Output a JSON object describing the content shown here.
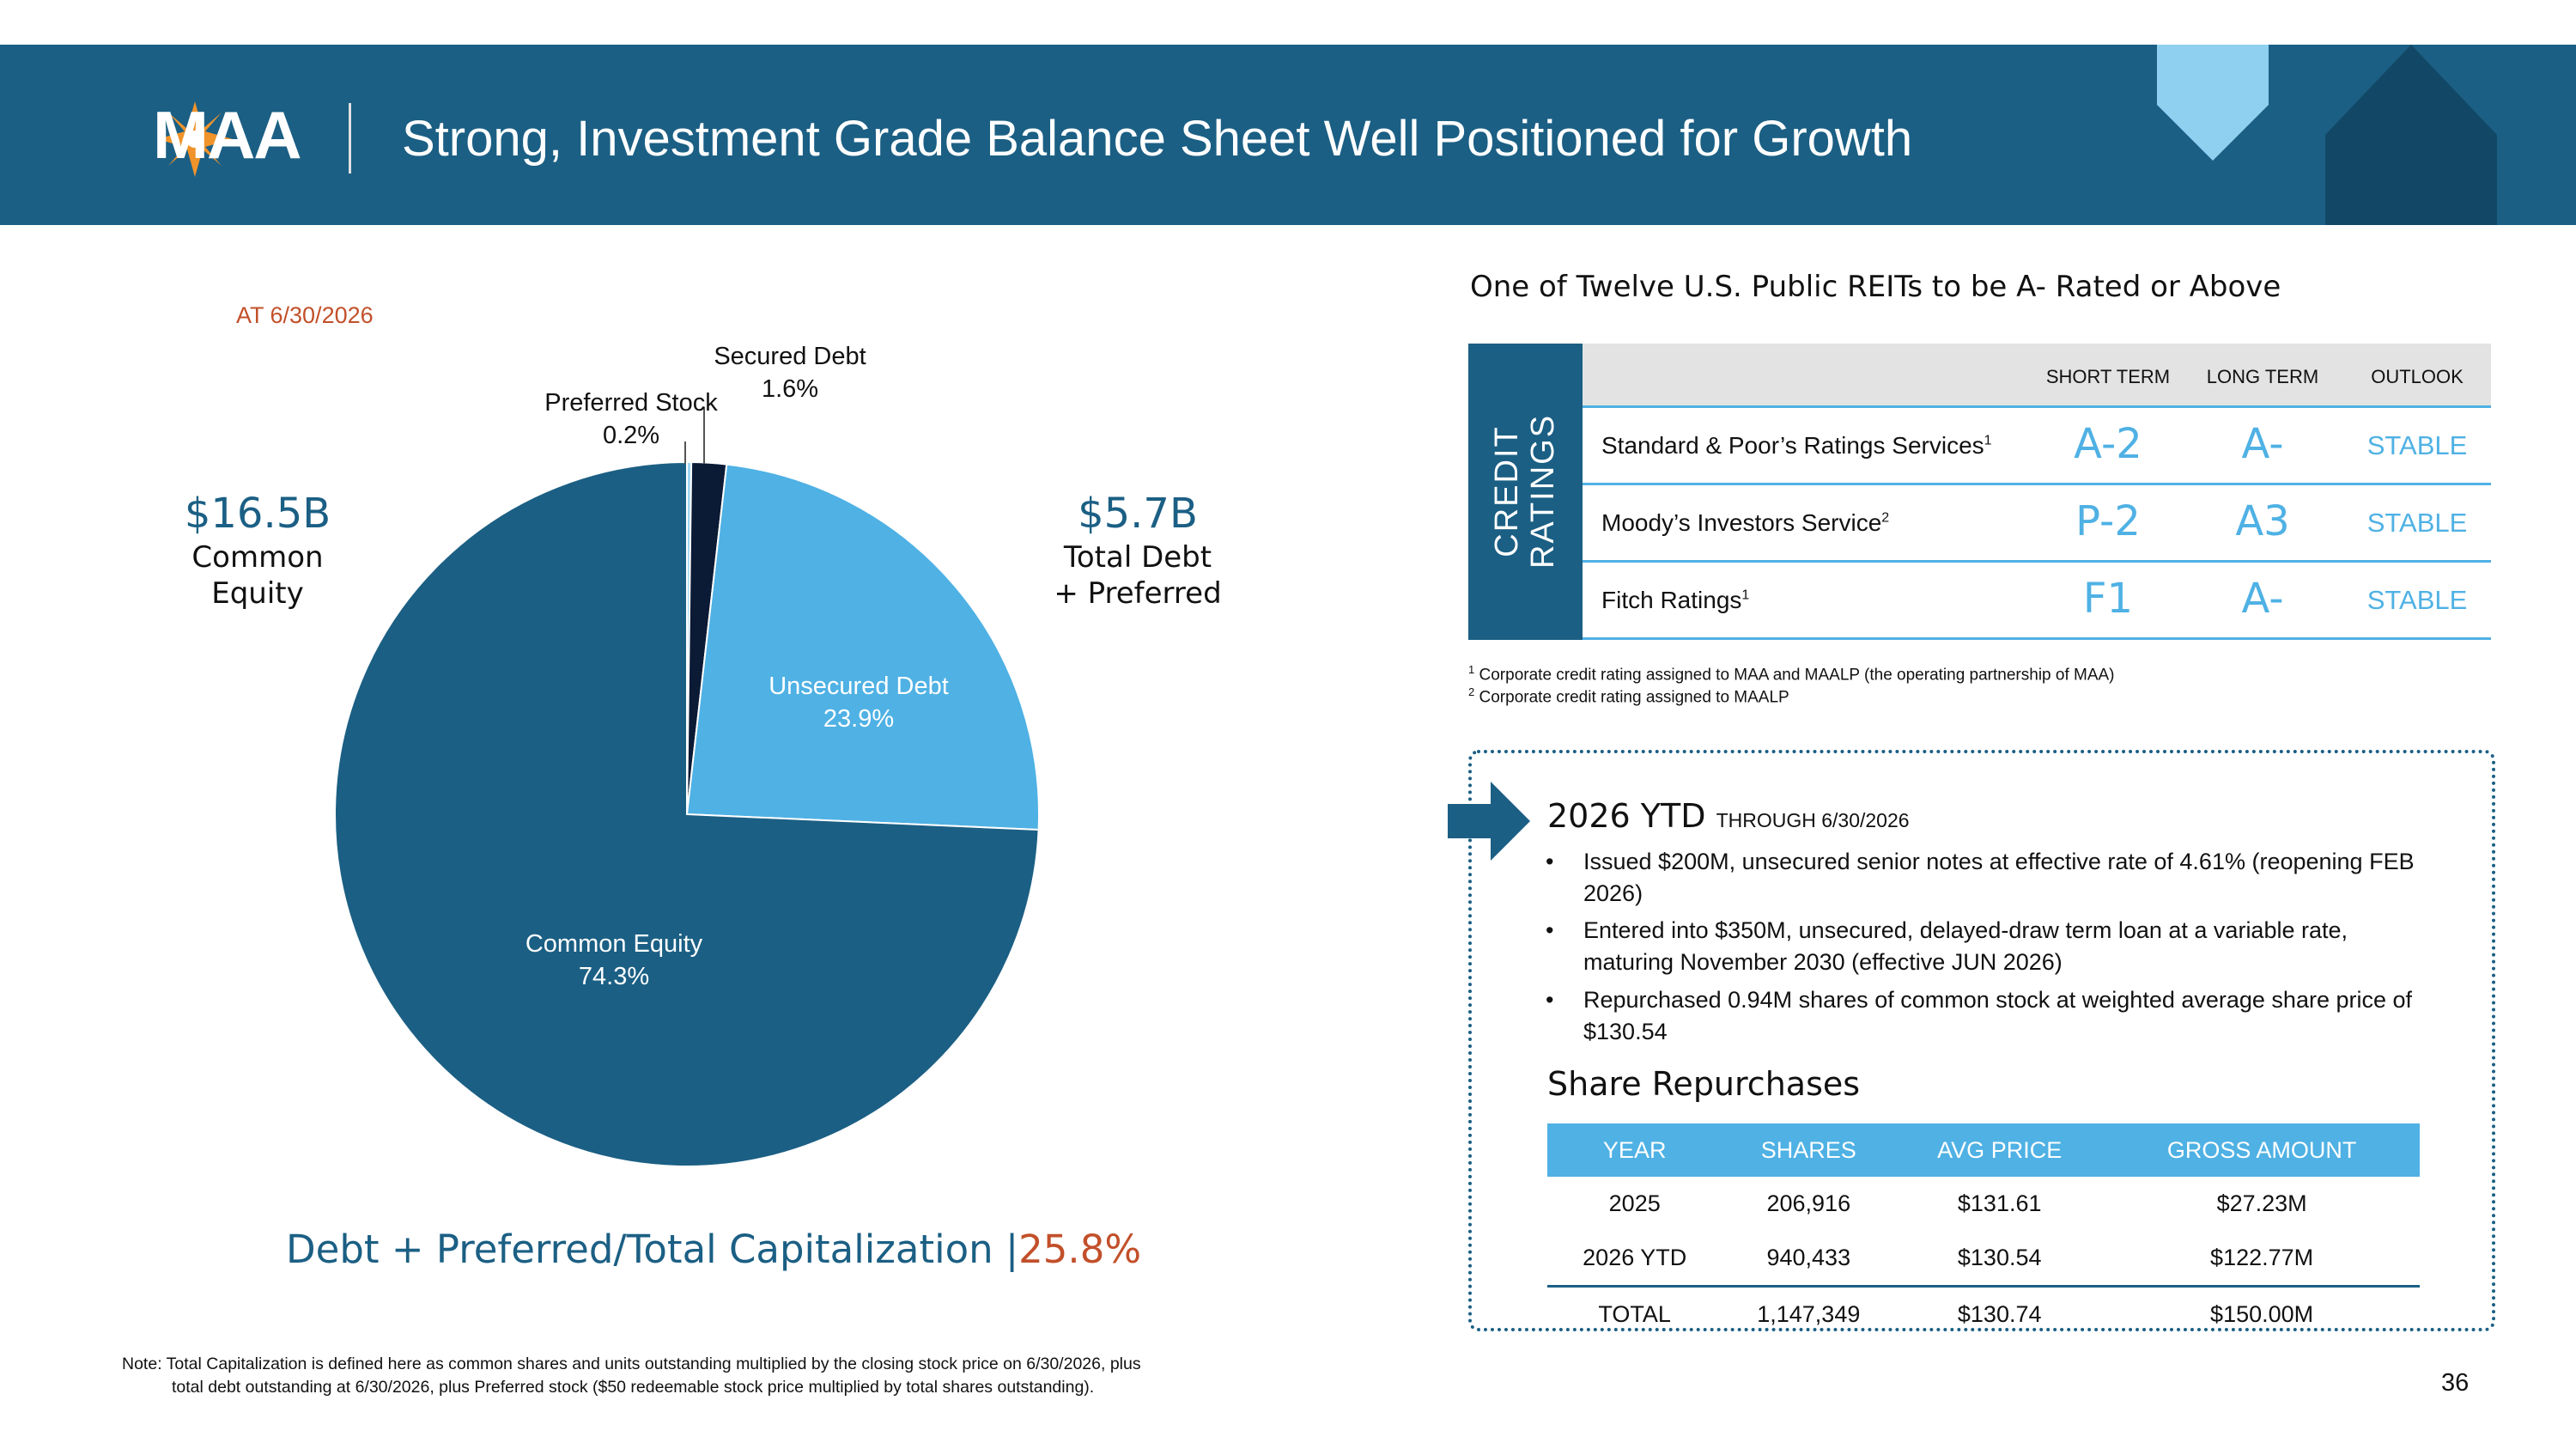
{
  "header": {
    "logo_text": "MAA",
    "title": "Strong, Investment Grade Balance Sheet Well Positioned for Growth"
  },
  "left": {
    "as_of": "AT 6/30/2026",
    "equity_callout": {
      "value": "$16.5B",
      "label1": "Common",
      "label2": "Equity"
    },
    "debt_callout": {
      "value": "$5.7B",
      "label1": "Total Debt",
      "label2": "+ Preferred"
    },
    "ratio_label": "Debt + Preferred/Total Capitalization |",
    "ratio_value": "25.8%",
    "note_line1": "Note: Total Capitalization is defined here as common shares and units outstanding multiplied by the closing stock price on 6/30/2026, plus",
    "note_line2": "total debt outstanding at 6/30/2026, plus Preferred stock ($50 redeemable stock price multiplied by total shares outstanding)."
  },
  "chart_data": {
    "type": "pie",
    "slices": [
      {
        "label": "Preferred Stock",
        "value": 0.2,
        "value_label": "0.2%",
        "color": "#9fd6f2"
      },
      {
        "label": "Secured Debt",
        "value": 1.6,
        "value_label": "1.6%",
        "color": "#0b1a35"
      },
      {
        "label": "Unsecured Debt",
        "value": 23.9,
        "value_label": "23.9%",
        "color": "#4fb1e4"
      },
      {
        "label": "Common Equity",
        "value": 74.3,
        "value_label": "74.3%",
        "color": "#1b5f84"
      }
    ]
  },
  "ratings": {
    "heading": "One of Twelve U.S. Public REITs to be A- Rated or Above",
    "side_line1": "CREDIT",
    "side_line2": "RATINGS",
    "columns": [
      "SHORT TERM",
      "LONG TERM",
      "OUTLOOK"
    ],
    "rows": [
      {
        "agency": "Standard & Poor’s Ratings Services",
        "sup": "1",
        "short": "A-2",
        "long": "A-",
        "outlook": "STABLE"
      },
      {
        "agency": "Moody’s Investors Service",
        "sup": "2",
        "short": "P-2",
        "long": "A3",
        "outlook": "STABLE"
      },
      {
        "agency": "Fitch Ratings",
        "sup": "1",
        "short": "F1",
        "long": "A-",
        "outlook": "STABLE"
      }
    ],
    "footnote1_sup": "1",
    "footnote1": "Corporate credit rating assigned to MAA and MAALP (the operating partnership of MAA)",
    "footnote2_sup": "2",
    "footnote2": "Corporate credit rating assigned to MAALP"
  },
  "ytd": {
    "title": "2026 YTD",
    "subtitle": "THROUGH 6/30/2026",
    "bullets": [
      "Issued $200M, unsecured senior notes at effective rate of 4.61% (reopening FEB 2026)",
      "Entered into $350M, unsecured, delayed-draw term loan at a variable rate, maturing November 2030 (effective JUN 2026)",
      "Repurchased 0.94M shares of common stock at weighted average share price of $130.54"
    ],
    "bullet_char": "•"
  },
  "repurchases": {
    "title": "Share Repurchases",
    "columns": [
      "YEAR",
      "SHARES",
      "AVG PRICE",
      "GROSS AMOUNT"
    ],
    "rows": [
      [
        "2025",
        "206,916",
        "$131.61",
        "$27.23M"
      ],
      [
        "2026 YTD",
        "940,433",
        "$130.54",
        "$122.77M"
      ]
    ],
    "total": [
      "TOTAL",
      "1,147,349",
      "$130.74",
      "$150.00M"
    ]
  },
  "page_number": "36",
  "colors": {
    "brand": "#1b5f84",
    "accent": "#4fb1e4",
    "highlight": "#c2502a"
  }
}
